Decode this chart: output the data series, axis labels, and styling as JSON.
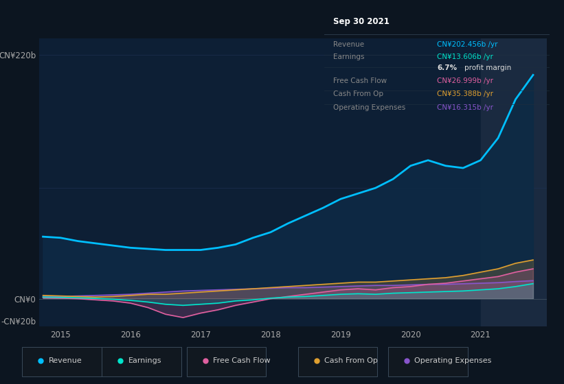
{
  "bg_color": "#0c1520",
  "plot_bg_color": "#0d1f35",
  "xlim": [
    2014.7,
    2021.95
  ],
  "ylim": [
    -25,
    235
  ],
  "ytick_labels": [
    "-CN¥20b",
    "CN¥0",
    "CN¥220b"
  ],
  "ytick_vals": [
    -20,
    0,
    220
  ],
  "xticks": [
    2015,
    2016,
    2017,
    2018,
    2019,
    2020,
    2021
  ],
  "series": {
    "Revenue": {
      "color": "#00bfff",
      "fill_color": "#0d2a45",
      "fill_alpha": 0.9,
      "linewidth": 2.0,
      "x": [
        2014.75,
        2015.0,
        2015.25,
        2015.5,
        2015.75,
        2016.0,
        2016.25,
        2016.5,
        2016.75,
        2017.0,
        2017.25,
        2017.5,
        2017.75,
        2018.0,
        2018.25,
        2018.5,
        2018.75,
        2019.0,
        2019.25,
        2019.5,
        2019.75,
        2020.0,
        2020.25,
        2020.5,
        2020.75,
        2021.0,
        2021.25,
        2021.5,
        2021.75
      ],
      "y": [
        56,
        55,
        52,
        50,
        48,
        46,
        45,
        44,
        44,
        44,
        46,
        49,
        55,
        60,
        68,
        75,
        82,
        90,
        95,
        100,
        108,
        120,
        125,
        120,
        118,
        125,
        145,
        180,
        202
      ]
    },
    "Earnings": {
      "color": "#00e5cc",
      "fill_color": "#00e5cc",
      "fill_alpha": 0.15,
      "linewidth": 1.2,
      "x": [
        2014.75,
        2015.0,
        2015.25,
        2015.5,
        2015.75,
        2016.0,
        2016.25,
        2016.5,
        2016.75,
        2017.0,
        2017.25,
        2017.5,
        2017.75,
        2018.0,
        2018.25,
        2018.5,
        2018.75,
        2019.0,
        2019.25,
        2019.5,
        2019.75,
        2020.0,
        2020.25,
        2020.5,
        2020.75,
        2021.0,
        2021.25,
        2021.5,
        2021.75
      ],
      "y": [
        1.5,
        1.2,
        0.8,
        0.3,
        -0.5,
        -1.5,
        -3,
        -5,
        -6,
        -5,
        -4,
        -2,
        -1,
        0.5,
        1.5,
        2,
        3,
        4,
        4.5,
        4,
        5,
        5.5,
        6,
        6.5,
        7,
        8,
        9,
        11,
        13.6
      ]
    },
    "Free Cash Flow": {
      "color": "#e060a0",
      "fill_color": "#e060a0",
      "fill_alpha": 0.2,
      "linewidth": 1.2,
      "x": [
        2014.75,
        2015.0,
        2015.25,
        2015.5,
        2015.75,
        2016.0,
        2016.25,
        2016.5,
        2016.75,
        2017.0,
        2017.25,
        2017.5,
        2017.75,
        2018.0,
        2018.25,
        2018.5,
        2018.75,
        2019.0,
        2019.25,
        2019.5,
        2019.75,
        2020.0,
        2020.25,
        2020.5,
        2020.75,
        2021.0,
        2021.25,
        2021.5,
        2021.75
      ],
      "y": [
        1,
        0.5,
        0,
        -1,
        -2,
        -4,
        -8,
        -14,
        -17,
        -13,
        -10,
        -6,
        -3,
        0,
        2,
        4,
        6,
        8,
        9,
        8,
        10,
        11,
        13,
        14,
        16,
        18,
        20,
        24,
        27
      ]
    },
    "Cash From Op": {
      "color": "#e0a030",
      "fill_color": "#e0a030",
      "fill_alpha": 0.2,
      "linewidth": 1.2,
      "x": [
        2014.75,
        2015.0,
        2015.25,
        2015.5,
        2015.75,
        2016.0,
        2016.25,
        2016.5,
        2016.75,
        2017.0,
        2017.25,
        2017.5,
        2017.75,
        2018.0,
        2018.25,
        2018.5,
        2018.75,
        2019.0,
        2019.25,
        2019.5,
        2019.75,
        2020.0,
        2020.25,
        2020.5,
        2020.75,
        2021.0,
        2021.25,
        2021.5,
        2021.75
      ],
      "y": [
        3,
        2.5,
        2,
        1.5,
        2,
        3,
        4,
        4,
        5,
        6,
        7,
        8,
        9,
        10,
        11,
        12,
        13,
        14,
        15,
        15,
        16,
        17,
        18,
        19,
        21,
        24,
        27,
        32,
        35
      ]
    },
    "Operating Expenses": {
      "color": "#8855cc",
      "fill_color": "#8855cc",
      "fill_alpha": 0.25,
      "linewidth": 1.2,
      "x": [
        2014.75,
        2015.0,
        2015.25,
        2015.5,
        2015.75,
        2016.0,
        2016.25,
        2016.5,
        2016.75,
        2017.0,
        2017.25,
        2017.5,
        2017.75,
        2018.0,
        2018.25,
        2018.5,
        2018.75,
        2019.0,
        2019.25,
        2019.5,
        2019.75,
        2020.0,
        2020.25,
        2020.5,
        2020.75,
        2021.0,
        2021.25,
        2021.5,
        2021.75
      ],
      "y": [
        2,
        2,
        2.5,
        3,
        3.5,
        4,
        5,
        6,
        7,
        7.5,
        8,
        8.5,
        9,
        9.5,
        10,
        10,
        10.5,
        11,
        11.5,
        12,
        12,
        12.5,
        13,
        13,
        13.5,
        14,
        14.5,
        15.5,
        16.3
      ]
    }
  },
  "infobox": {
    "title": "Sep 30 2021",
    "title_color": "#ffffff",
    "bg": "#050e18",
    "border_color": "#2a3a4a",
    "rows": [
      {
        "label": "Revenue",
        "label_color": "#888888",
        "value": "CN¥202.456b /yr",
        "value_color": "#00bfff"
      },
      {
        "label": "Earnings",
        "label_color": "#888888",
        "value": "CN¥13.606b /yr",
        "value_color": "#00e5cc"
      },
      {
        "label": "",
        "label_color": "#888888",
        "value": "6.7% profit margin",
        "value_color": "#dddddd",
        "bold_prefix": "6.7%"
      },
      {
        "label": "Free Cash Flow",
        "label_color": "#888888",
        "value": "CN¥26.999b /yr",
        "value_color": "#e060a0"
      },
      {
        "label": "Cash From Op",
        "label_color": "#888888",
        "value": "CN¥35.388b /yr",
        "value_color": "#e0a030"
      },
      {
        "label": "Operating Expenses",
        "label_color": "#888888",
        "value": "CN¥16.315b /yr",
        "value_color": "#8855cc"
      }
    ]
  },
  "legend": [
    {
      "label": "Revenue",
      "color": "#00bfff"
    },
    {
      "label": "Earnings",
      "color": "#00e5cc"
    },
    {
      "label": "Free Cash Flow",
      "color": "#e060a0"
    },
    {
      "label": "Cash From Op",
      "color": "#e0a030"
    },
    {
      "label": "Operating Expenses",
      "color": "#8855cc"
    }
  ],
  "vspan_start": 2021.0,
  "vspan_end": 2021.95,
  "vspan_color": "#1a2a40",
  "hline_color": "#1e3050",
  "zero_line_color": "#3a4a5a",
  "grid_color": "#112030"
}
